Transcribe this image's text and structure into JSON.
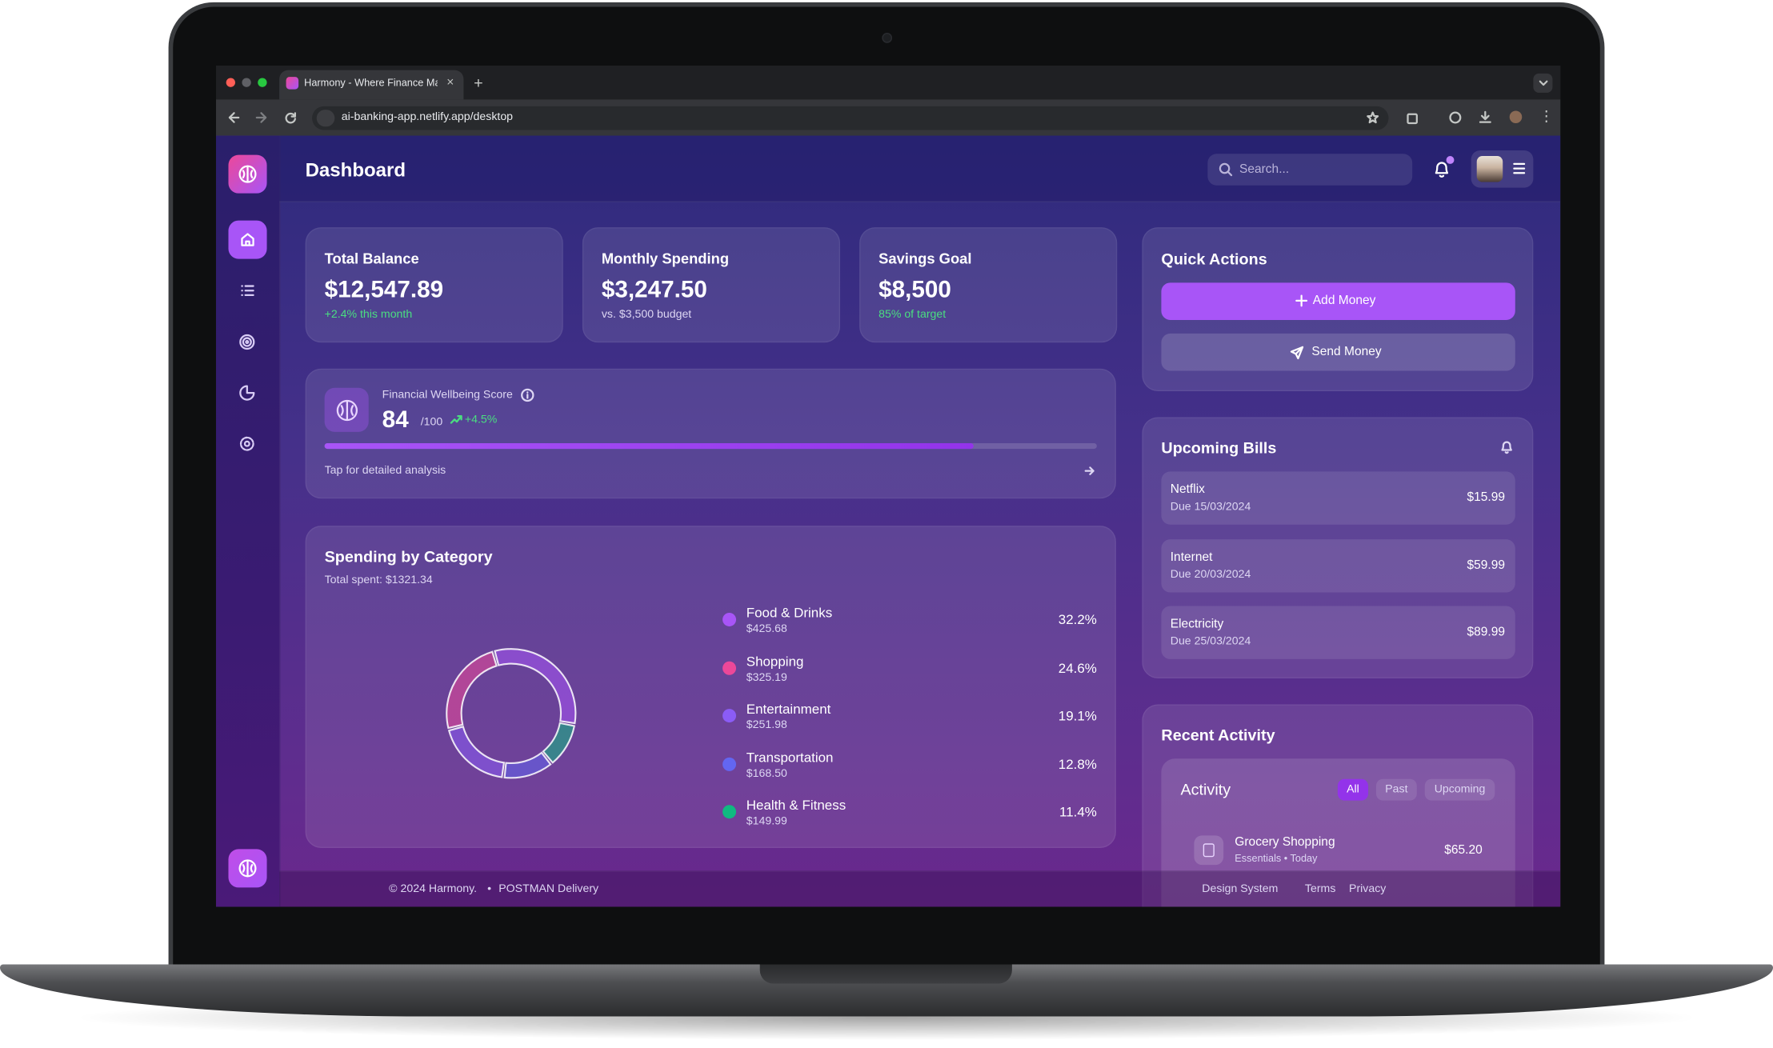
{
  "browser": {
    "tab_title": "Harmony - Where Finance Ma",
    "url": "ai-banking-app.netlify.app/desktop"
  },
  "header": {
    "title": "Dashboard",
    "search_placeholder": "Search..."
  },
  "stats": [
    {
      "label": "Total Balance",
      "value": "$12,547.89",
      "note": "+2.4% this month"
    },
    {
      "label": "Monthly Spending",
      "value": "$3,247.50",
      "note": "vs. $3,500 budget"
    },
    {
      "label": "Savings Goal",
      "value": "$8,500",
      "note": "85% of target"
    }
  ],
  "wellbeing": {
    "label": "Financial Wellbeing Score",
    "score": 84,
    "scale": {
      "value": 100,
      "label": "/100"
    },
    "change": "+4.5%",
    "link": "Tap for detailed analysis"
  },
  "spending": {
    "title": "Spending by Category",
    "total": "Total spent: $1321.34",
    "categories": [
      "Food & Drinks",
      "Shopping",
      "Entertainment",
      "Transportation",
      "Health & Fitness"
    ],
    "amounts": [
      "$425.68",
      "$325.19",
      "$251.98",
      "$168.50",
      "$149.99"
    ],
    "values": [
      32.2,
      24.6,
      19.1,
      12.8,
      11.4
    ],
    "value_labels": [
      "32.2%",
      "24.6%",
      "19.1%",
      "12.8%",
      "11.4%"
    ],
    "colors": [
      "#a855f7",
      "#ec4899",
      "#8b5cf6",
      "#6366f1",
      "#10b981"
    ]
  },
  "quick_actions": {
    "title": "Quick Actions",
    "buttons": [
      "Add Money",
      "Send Money"
    ]
  },
  "bills": {
    "title": "Upcoming Bills",
    "items": [
      {
        "name": "Netflix",
        "due": "Due 15/03/2024",
        "amount": "$15.99"
      },
      {
        "name": "Internet",
        "due": "Due 20/03/2024",
        "amount": "$59.99"
      },
      {
        "name": "Electricity",
        "due": "Due 25/03/2024",
        "amount": "$89.99"
      }
    ]
  },
  "activity": {
    "title": "Recent Activity",
    "panel_title": "Activity",
    "tabs": [
      "All",
      "Past",
      "Upcoming"
    ],
    "items": [
      {
        "name": "Grocery Shopping",
        "detail": "Essentials • Today",
        "amount": "$65.20"
      }
    ]
  },
  "footer": {
    "copyright": "© 2024 Harmony.",
    "separator": "•",
    "left_link": "POSTMAN Delivery",
    "links": [
      "Design System",
      "Terms",
      "Privacy"
    ]
  }
}
